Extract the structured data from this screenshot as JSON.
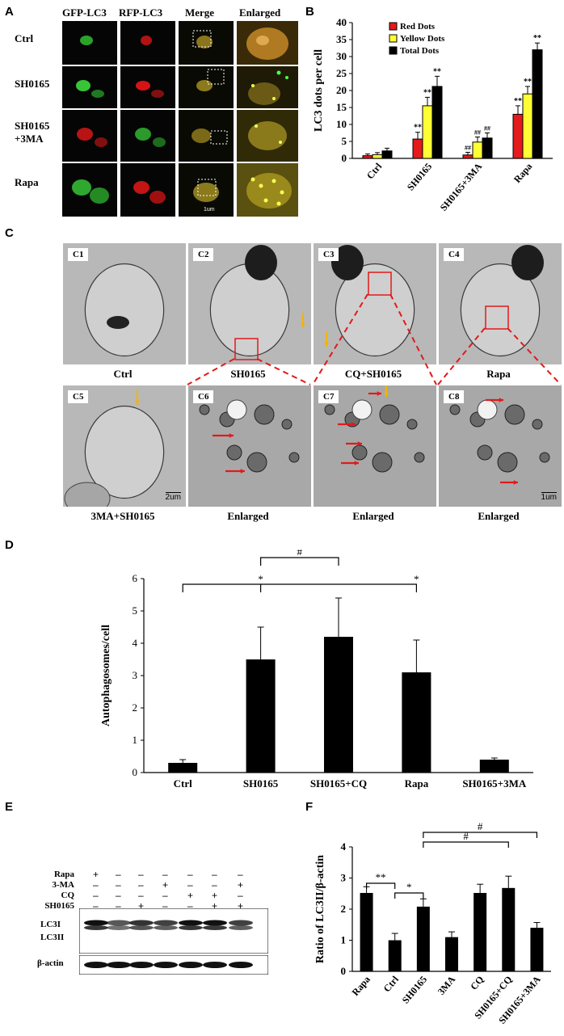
{
  "panels": {
    "a": "A",
    "b": "B",
    "c": "C",
    "d": "D",
    "e": "E",
    "f": "F"
  },
  "panelA": {
    "columns": [
      "GFP-LC3",
      "RFP-LC3",
      "Merge",
      "Enlarged"
    ],
    "rows": [
      "Ctrl",
      "SH0165",
      "SH0165\n+3MA",
      "Rapa"
    ],
    "scale_text": "1um",
    "colors": {
      "green": "#1f7a1f",
      "red": "#b81414",
      "merge": "#6e5a12",
      "black": "#0a0a0a"
    }
  },
  "panelB": {
    "chart_data": {
      "type": "bar",
      "ylabel": "LC3 dots per cell",
      "ylim": [
        0,
        40
      ],
      "yticks": [
        "0",
        "5",
        "10",
        "15",
        "20",
        "25",
        "30",
        "35",
        "40"
      ],
      "categories": [
        "Ctrl",
        "SH0165",
        "SH0165+3MA",
        "Rapa"
      ],
      "series": [
        {
          "name": "Red Dots",
          "color": "#e41a1c",
          "values": [
            0.8,
            5.7,
            1.0,
            13.0
          ],
          "errors": [
            0.5,
            2.0,
            0.8,
            2.5
          ],
          "marks": [
            "",
            "**",
            "##",
            ""
          ]
        },
        {
          "name": "Yellow Dots",
          "color": "#ffff33",
          "values": [
            1.1,
            15.5,
            4.8,
            19.0
          ],
          "errors": [
            0.6,
            2.5,
            1.5,
            2.2
          ],
          "marks": [
            "",
            "**",
            "##",
            "**"
          ]
        },
        {
          "name": "Total Dots",
          "color": "#000000",
          "values": [
            2.2,
            21.2,
            6.0,
            32.0
          ],
          "errors": [
            0.8,
            3.0,
            1.5,
            2.0
          ],
          "marks": [
            "",
            "**",
            "##",
            "**"
          ]
        }
      ],
      "extra_marks": [
        {
          "category": "Rapa",
          "series": "Red Dots",
          "text": "**"
        }
      ]
    }
  },
  "panelC": {
    "tiles": [
      {
        "tag": "C1",
        "caption": "Ctrl"
      },
      {
        "tag": "C2",
        "caption": "SH0165"
      },
      {
        "tag": "C3",
        "caption": "CQ+SH0165"
      },
      {
        "tag": "C4",
        "caption": "Rapa"
      },
      {
        "tag": "C5",
        "caption": "3MA+SH0165",
        "scale": "2um"
      },
      {
        "tag": "C6",
        "caption": "Enlarged"
      },
      {
        "tag": "C7",
        "caption": "Enlarged"
      },
      {
        "tag": "C8",
        "caption": "Enlarged",
        "scale": "1um"
      }
    ]
  },
  "panelD": {
    "chart_data": {
      "type": "bar",
      "ylabel": "Autophagosomes/cell",
      "ylim": [
        0,
        6
      ],
      "yticks": [
        "0",
        "1",
        "2",
        "3",
        "4",
        "5",
        "6"
      ],
      "categories": [
        "Ctrl",
        "SH0165",
        "SH0165+CQ",
        "Rapa",
        "SH0165+3MA"
      ],
      "values": [
        0.3,
        3.5,
        4.2,
        3.1,
        0.4
      ],
      "errors": [
        0.1,
        1.0,
        1.2,
        1.0,
        0.05
      ],
      "brackets": [
        {
          "from": "Ctrl",
          "to": "Rapa",
          "tick": "SH0165",
          "tick2": "Rapa",
          "label": "*",
          "label2": "*"
        },
        {
          "from": "SH0165",
          "to": "SH0165+CQ",
          "label": "#"
        },
        {
          "from": "SH0165",
          "to": "SH0165+3MA",
          "label": "#"
        }
      ]
    }
  },
  "panelE": {
    "treatments": [
      "Rapa",
      "3-MA",
      "CQ",
      "SH0165"
    ],
    "matrix": [
      [
        "+",
        "–",
        "–",
        "–",
        "–",
        "–",
        "–"
      ],
      [
        "–",
        "–",
        "–",
        "+",
        "–",
        "–",
        "+"
      ],
      [
        "–",
        "–",
        "–",
        "–",
        "+",
        "+",
        "–"
      ],
      [
        "–",
        "–",
        "+",
        "–",
        "–",
        "+",
        "+"
      ]
    ],
    "blot_labels": [
      "LC3I",
      "LC3II",
      "β-actin"
    ]
  },
  "panelF": {
    "chart_data": {
      "type": "bar",
      "ylabel": "Ratio of LC3II/β-actin",
      "ylim": [
        0,
        4
      ],
      "yticks": [
        "0",
        "1",
        "2",
        "3",
        "4"
      ],
      "categories": [
        "Rapa",
        "Ctrl",
        "SH0165",
        "3MA",
        "CQ",
        "SH0165+CQ",
        "SH0165+3MA"
      ],
      "values": [
        2.52,
        1.0,
        2.08,
        1.1,
        2.52,
        2.68,
        1.4
      ],
      "errors": [
        0.2,
        0.22,
        0.25,
        0.17,
        0.28,
        0.38,
        0.17
      ],
      "brackets": [
        {
          "from": "Rapa",
          "to": "Ctrl",
          "label": "**"
        },
        {
          "from": "Ctrl",
          "to": "SH0165",
          "label": "*"
        },
        {
          "from": "SH0165",
          "to": "SH0165+CQ",
          "label": "#"
        },
        {
          "from": "SH0165",
          "to": "SH0165+3MA",
          "label": "#"
        }
      ]
    }
  }
}
